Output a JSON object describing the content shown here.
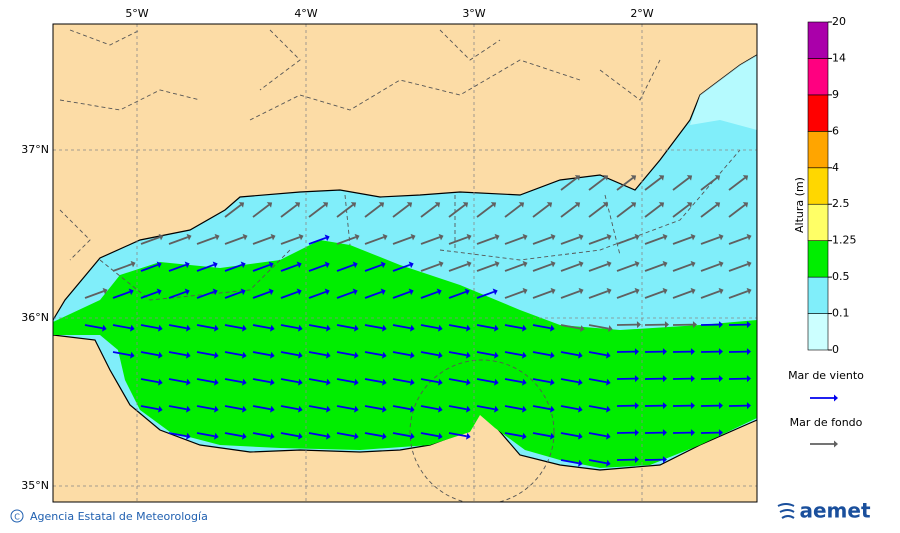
{
  "map": {
    "lon_labels": [
      "5°W",
      "4°W",
      "3°W",
      "2°W"
    ],
    "lat_labels": [
      "37°N",
      "36°N",
      "35°N"
    ]
  },
  "colorbar": {
    "title": "Altura (m)",
    "levels": [
      0,
      0.1,
      0.5,
      1.25,
      2.5,
      4,
      6,
      9,
      14,
      20
    ],
    "colors": [
      "#ccffff",
      "#80eefa",
      "#00ee00",
      "#ffff66",
      "#ffd700",
      "#ffa500",
      "#ff0000",
      "#ff0080",
      "#aa00aa"
    ]
  },
  "legend": {
    "items": [
      {
        "label": "Mar de viento",
        "color": "#0000ee"
      },
      {
        "label": "Mar de fondo",
        "color": "#606060"
      }
    ]
  },
  "credit": "Agencia Estatal de Meteorología",
  "logo": "aemet"
}
